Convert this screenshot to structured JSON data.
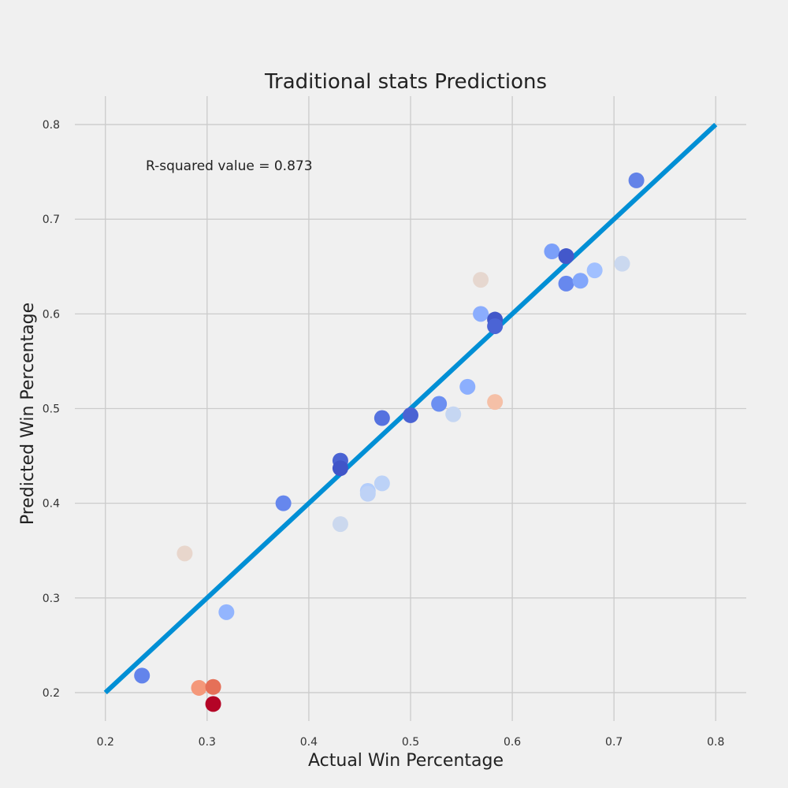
{
  "chart_data": {
    "type": "scatter",
    "title": "Traditional stats Predictions",
    "xlabel": "Actual Win Percentage",
    "ylabel": "Predicted Win Percentage",
    "xlim": [
      0.17,
      0.83
    ],
    "ylim": [
      0.17,
      0.83
    ],
    "xticks": [
      "0.2",
      "0.3",
      "0.4",
      "0.5",
      "0.6",
      "0.7",
      "0.8"
    ],
    "yticks": [
      "0.2",
      "0.3",
      "0.4",
      "0.5",
      "0.6",
      "0.7",
      "0.8"
    ],
    "grid": true,
    "annotation": "R-squared value = 0.873",
    "reference_line": {
      "x": [
        0.2,
        0.8
      ],
      "y": [
        0.2,
        0.8
      ],
      "color": "#008fd5"
    },
    "points": [
      {
        "x": 0.722,
        "y": 0.741,
        "color": "#6383e8"
      },
      {
        "x": 0.639,
        "y": 0.666,
        "color": "#7b9ff9"
      },
      {
        "x": 0.653,
        "y": 0.661,
        "color": "#4358cb"
      },
      {
        "x": 0.653,
        "y": 0.632,
        "color": "#6788ee"
      },
      {
        "x": 0.667,
        "y": 0.635,
        "color": "#82a6fb"
      },
      {
        "x": 0.681,
        "y": 0.646,
        "color": "#a1c0ff"
      },
      {
        "x": 0.708,
        "y": 0.653,
        "color": "#cad8ef"
      },
      {
        "x": 0.569,
        "y": 0.636,
        "color": "#e6d7cf"
      },
      {
        "x": 0.569,
        "y": 0.6,
        "color": "#8badfd"
      },
      {
        "x": 0.583,
        "y": 0.594,
        "color": "#4257c9"
      },
      {
        "x": 0.583,
        "y": 0.587,
        "color": "#4b64d5"
      },
      {
        "x": 0.556,
        "y": 0.523,
        "color": "#8caffe"
      },
      {
        "x": 0.528,
        "y": 0.505,
        "color": "#6c8ff1"
      },
      {
        "x": 0.542,
        "y": 0.494,
        "color": "#c5d6f2"
      },
      {
        "x": 0.583,
        "y": 0.507,
        "color": "#f5c0a7"
      },
      {
        "x": 0.5,
        "y": 0.493,
        "color": "#4a63d3"
      },
      {
        "x": 0.472,
        "y": 0.49,
        "color": "#5572df"
      },
      {
        "x": 0.431,
        "y": 0.445,
        "color": "#4a63d3"
      },
      {
        "x": 0.431,
        "y": 0.437,
        "color": "#4055c8"
      },
      {
        "x": 0.472,
        "y": 0.421,
        "color": "#bcd2f7"
      },
      {
        "x": 0.458,
        "y": 0.413,
        "color": "#b3cdfb"
      },
      {
        "x": 0.458,
        "y": 0.41,
        "color": "#bed2f6"
      },
      {
        "x": 0.375,
        "y": 0.4,
        "color": "#6687ed"
      },
      {
        "x": 0.431,
        "y": 0.378,
        "color": "#cbd8ee"
      },
      {
        "x": 0.278,
        "y": 0.347,
        "color": "#e8d6cc"
      },
      {
        "x": 0.319,
        "y": 0.285,
        "color": "#93b5fe"
      },
      {
        "x": 0.236,
        "y": 0.218,
        "color": "#6384eb"
      },
      {
        "x": 0.292,
        "y": 0.205,
        "color": "#f4987a"
      },
      {
        "x": 0.306,
        "y": 0.206,
        "color": "#e57058"
      },
      {
        "x": 0.306,
        "y": 0.188,
        "color": "#b40426"
      }
    ]
  }
}
